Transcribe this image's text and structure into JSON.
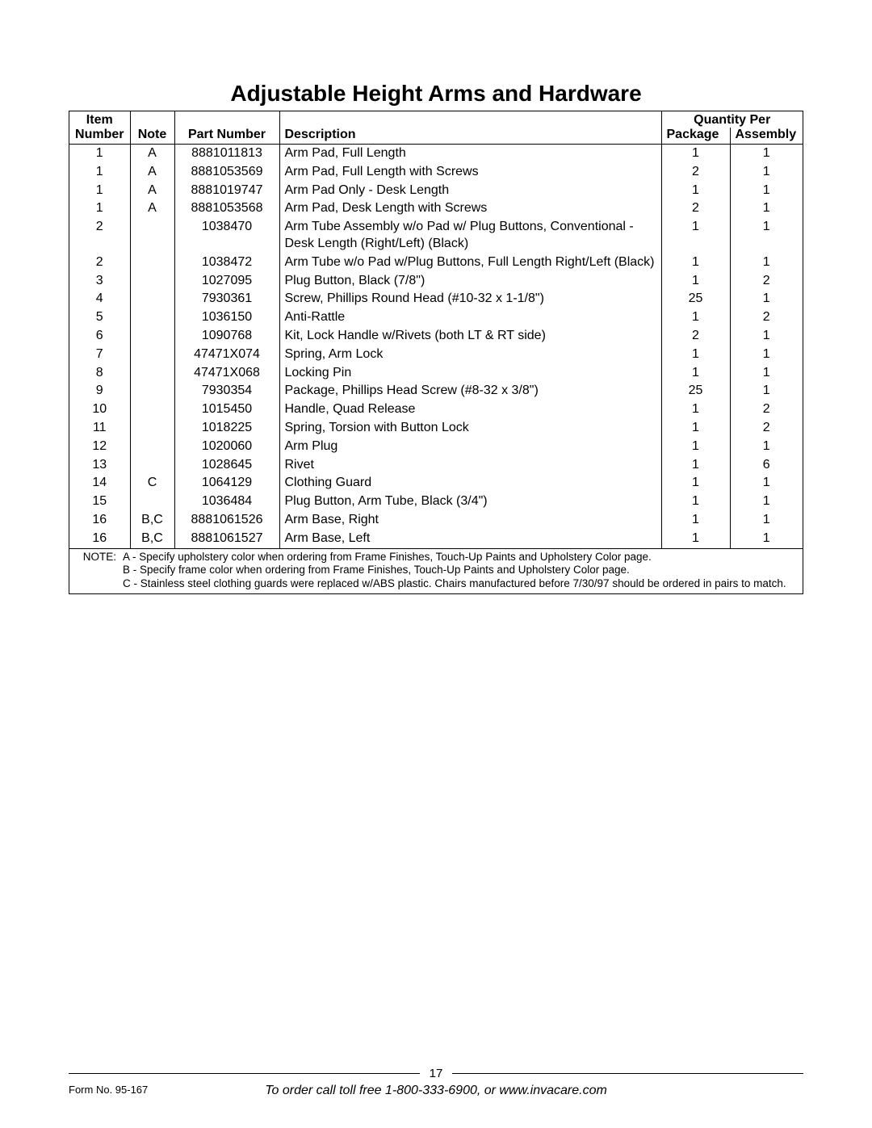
{
  "title": "Adjustable Height Arms and Hardware",
  "headers": {
    "item_top": "Item",
    "item_bottom": "Number",
    "note": "Note",
    "part": "Part Number",
    "description": "Description",
    "qty_top": "Quantity Per",
    "package": "Package",
    "assembly": "Assembly"
  },
  "rows": [
    {
      "item": "1",
      "note": "A",
      "part": "8881011813",
      "desc": "Arm Pad, Full Length",
      "pkg": "1",
      "asm": "1"
    },
    {
      "item": "1",
      "note": "A",
      "part": "8881053569",
      "desc": "Arm Pad, Full Length with Screws",
      "pkg": "2",
      "asm": "1"
    },
    {
      "item": "1",
      "note": "A",
      "part": "8881019747",
      "desc": "Arm Pad Only - Desk Length",
      "pkg": "1",
      "asm": "1"
    },
    {
      "item": "1",
      "note": "A",
      "part": "8881053568",
      "desc": "Arm Pad, Desk Length with Screws",
      "pkg": "2",
      "asm": "1"
    },
    {
      "item": "2",
      "note": "",
      "part": "1038470",
      "desc": "Arm Tube Assembly w/o Pad w/ Plug Buttons, Conventional - Desk Length (Right/Left) (Black)",
      "pkg": "1",
      "asm": "1"
    },
    {
      "item": "2",
      "note": "",
      "part": "1038472",
      "desc": "Arm Tube w/o Pad w/Plug Buttons, Full Length Right/Left (Black)",
      "pkg": "1",
      "asm": "1"
    },
    {
      "item": "3",
      "note": "",
      "part": "1027095",
      "desc": "Plug Button, Black (7/8\")",
      "pkg": "1",
      "asm": "2"
    },
    {
      "item": "4",
      "note": "",
      "part": "7930361",
      "desc": "Screw, Phillips Round Head (#10-32 x 1-1/8\")",
      "pkg": "25",
      "asm": "1"
    },
    {
      "item": "5",
      "note": "",
      "part": "1036150",
      "desc": "Anti-Rattle",
      "pkg": "1",
      "asm": "2"
    },
    {
      "item": "6",
      "note": "",
      "part": "1090768",
      "desc": "Kit, Lock Handle w/Rivets (both LT & RT side)",
      "pkg": "2",
      "asm": "1"
    },
    {
      "item": "7",
      "note": "",
      "part": "47471X074",
      "desc": "Spring, Arm Lock",
      "pkg": "1",
      "asm": "1"
    },
    {
      "item": "8",
      "note": "",
      "part": "47471X068",
      "desc": "Locking Pin",
      "pkg": "1",
      "asm": "1"
    },
    {
      "item": "9",
      "note": "",
      "part": "7930354",
      "desc": "Package, Phillips Head Screw (#8-32 x 3/8\")",
      "pkg": "25",
      "asm": "1"
    },
    {
      "item": "10",
      "note": "",
      "part": "1015450",
      "desc": "Handle, Quad Release",
      "pkg": "1",
      "asm": "2"
    },
    {
      "item": "11",
      "note": "",
      "part": "1018225",
      "desc": "Spring, Torsion with Button Lock",
      "pkg": "1",
      "asm": "2"
    },
    {
      "item": "12",
      "note": "",
      "part": "1020060",
      "desc": "Arm Plug",
      "pkg": "1",
      "asm": "1"
    },
    {
      "item": "13",
      "note": "",
      "part": "1028645",
      "desc": "Rivet",
      "pkg": "1",
      "asm": "6"
    },
    {
      "item": "14",
      "note": "C",
      "part": "1064129",
      "desc": "Clothing Guard",
      "pkg": "1",
      "asm": "1"
    },
    {
      "item": "15",
      "note": "",
      "part": "1036484",
      "desc": "Plug Button, Arm Tube, Black (3/4\")",
      "pkg": "1",
      "asm": "1"
    },
    {
      "item": "16",
      "note": "B,C",
      "part": "8881061526",
      "desc": "Arm Base, Right",
      "pkg": "1",
      "asm": "1"
    },
    {
      "item": "16",
      "note": "B,C",
      "part": "8881061527",
      "desc": "Arm Base, Left",
      "pkg": "1",
      "asm": "1"
    }
  ],
  "notes": {
    "label": "NOTE:",
    "a": "A - Specify upholstery color when ordering from Frame Finishes, Touch-Up Paints and Upholstery Color page.",
    "b": "B - Specify frame color when ordering from Frame Finishes, Touch-Up Paints and Upholstery Color page.",
    "c": "C - Stainless steel clothing guards were replaced w/ABS plastic.  Chairs manufactured before 7/30/97 should be ordered in pairs to match."
  },
  "footer": {
    "page_number": "17",
    "form_no": "Form No. 95-167",
    "order_text": "To order call toll free 1-800-333-6900, or www.invacare.com"
  }
}
